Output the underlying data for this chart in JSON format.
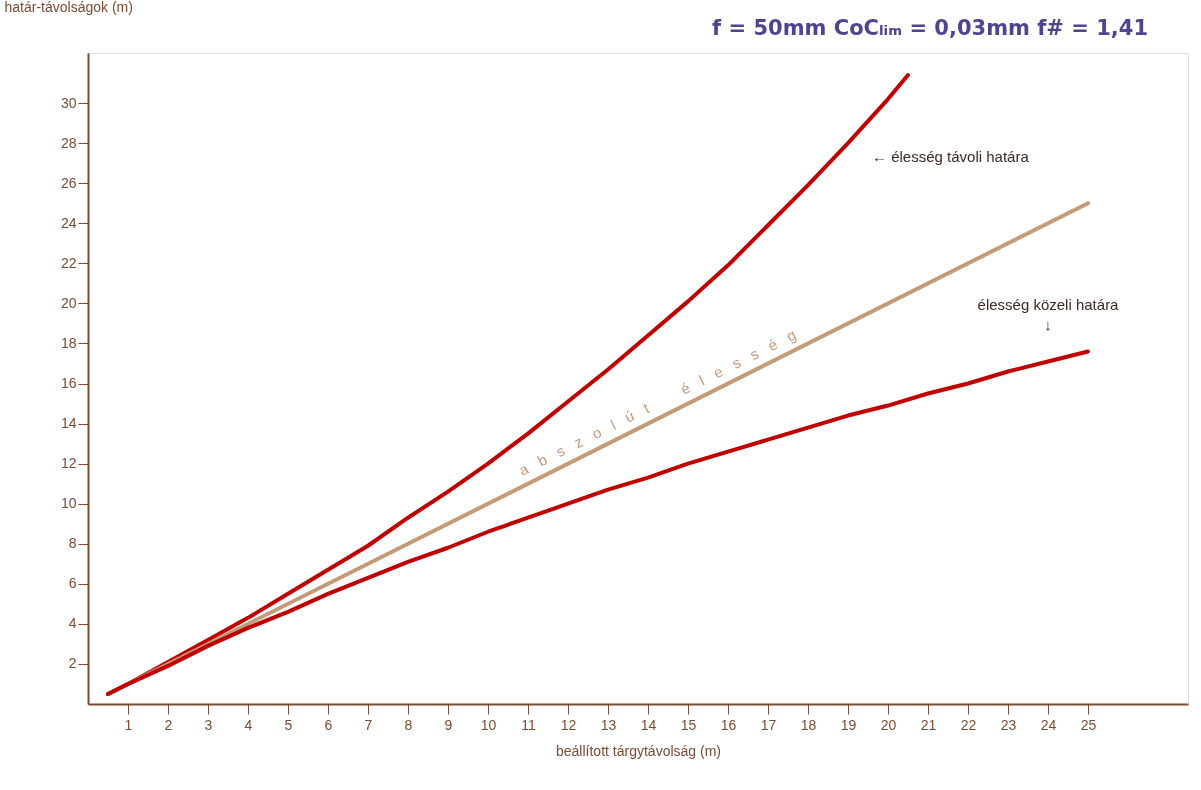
{
  "chart_data": {
    "type": "line",
    "title": "f = 50mm   CoCₗᵢₘ = 0,03mm   f# = 1,41",
    "xlabel": "beállított tárgytávolság (m)",
    "ylabel": "határ-távolságok (m)",
    "xlim": [
      0,
      27.5
    ],
    "ylim": [
      0,
      32.5
    ],
    "xticks": [
      1,
      2,
      3,
      4,
      5,
      6,
      7,
      8,
      9,
      10,
      11,
      12,
      13,
      14,
      15,
      16,
      17,
      18,
      19,
      20,
      21,
      22,
      23,
      24,
      25
    ],
    "yticks": [
      2,
      4,
      6,
      8,
      10,
      12,
      14,
      16,
      18,
      20,
      22,
      24,
      26,
      28,
      30
    ],
    "grid": false,
    "marker": "none",
    "line_style": "solid",
    "series": [
      {
        "color": "#c00000",
        "x": [
          0.5,
          1,
          2,
          3,
          4,
          5,
          6,
          7,
          8,
          9,
          10,
          11,
          12,
          13,
          14,
          15,
          16,
          17,
          18,
          19,
          20,
          20.5
        ],
        "values": [
          0.5,
          1.0,
          2.1,
          3.2,
          4.3,
          5.5,
          6.7,
          7.9,
          9.3,
          10.6,
          12.0,
          13.5,
          15.1,
          16.7,
          18.4,
          20.1,
          21.9,
          23.9,
          25.9,
          28.0,
          30.2,
          31.4
        ]
      },
      {
        "color": "#c49a78",
        "x": [
          0.5,
          25
        ],
        "values": [
          0.5,
          25
        ]
      },
      {
        "color": "#c00000",
        "x": [
          0.5,
          1,
          2,
          3,
          4,
          5,
          6,
          7,
          8,
          9,
          10,
          11,
          12,
          13,
          14,
          15,
          16,
          17,
          18,
          19,
          20,
          21,
          22,
          23,
          24,
          25
        ],
        "values": [
          0.5,
          1.0,
          1.9,
          2.9,
          3.8,
          4.6,
          5.5,
          6.3,
          7.1,
          7.8,
          8.6,
          9.3,
          10.0,
          10.7,
          11.3,
          12.0,
          12.6,
          13.2,
          13.8,
          14.4,
          14.9,
          15.5,
          16.0,
          16.6,
          17.1,
          17.6
        ]
      }
    ],
    "annotations": [
      "← élesség távoli határa",
      "élesség közeli határa\n↓",
      "a b s z o l ú t   é l e s s é g"
    ]
  }
}
